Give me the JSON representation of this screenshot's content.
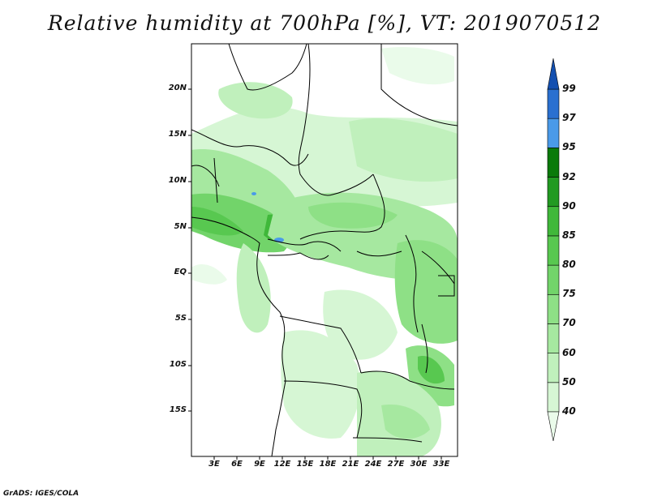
{
  "title": "Relative humidity at 700hPa [%], VT: 2019070512",
  "credit": "GrADS: IGES/COLA",
  "lat_labels": [
    "20N",
    "15N",
    "10N",
    "5N",
    "EQ",
    "5S",
    "10S",
    "15S"
  ],
  "lon_labels": [
    "3E",
    "6E",
    "9E",
    "12E",
    "15E",
    "18E",
    "21E",
    "24E",
    "27E",
    "30E",
    "33E"
  ],
  "colorbar": {
    "levels": [
      "40",
      "50",
      "60",
      "70",
      "75",
      "80",
      "85",
      "90",
      "92",
      "95",
      "97",
      "99"
    ],
    "colors": [
      "#eafbea",
      "#d6f6d4",
      "#c0f0bc",
      "#a6e8a0",
      "#8ee086",
      "#72d46a",
      "#58c850",
      "#40b83a",
      "#229a22",
      "#0a7a0a",
      "#4a9ae8",
      "#2a70d0",
      "#1450b0"
    ]
  }
}
